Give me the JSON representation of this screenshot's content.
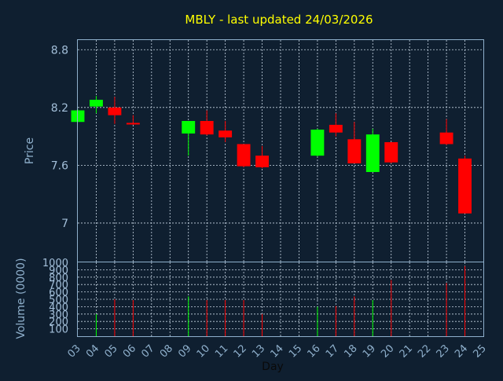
{
  "colors": {
    "background": "#0f1f30",
    "frame": "#8fb0cc",
    "grid": "#c8d6e4",
    "up": "#00ff00",
    "down": "#ff0000",
    "title": "#ffff00",
    "text": "#a3bfd9"
  },
  "chart_data": [
    {
      "type": "candlestick",
      "title": "MBLY - last updated 24/03/2026",
      "ylabel": "Price",
      "ylim": [
        6.6,
        8.9
      ],
      "yticks": [
        "8.8",
        "8.2",
        "7.6",
        "7"
      ],
      "grid": true,
      "series": [
        {
          "day": "03",
          "open": 8.05,
          "high": 8.18,
          "low": 8.05,
          "close": 8.17
        },
        {
          "day": "04",
          "open": 8.21,
          "high": 8.32,
          "low": 8.14,
          "close": 8.28
        },
        {
          "day": "05",
          "open": 8.2,
          "high": 8.31,
          "low": 8.03,
          "close": 8.12
        },
        {
          "day": "06",
          "open": 8.04,
          "high": 8.12,
          "low": 8.02,
          "close": 8.03
        },
        {
          "day": "09",
          "open": 7.93,
          "high": 8.05,
          "low": 7.7,
          "close": 8.06
        },
        {
          "day": "10",
          "open": 8.06,
          "high": 8.17,
          "low": 7.91,
          "close": 7.92
        },
        {
          "day": "11",
          "open": 7.96,
          "high": 8.06,
          "low": 7.84,
          "close": 7.89
        },
        {
          "day": "12",
          "open": 7.82,
          "high": 7.82,
          "low": 7.58,
          "close": 7.59
        },
        {
          "day": "13",
          "open": 7.7,
          "high": 7.8,
          "low": 7.57,
          "close": 7.58
        },
        {
          "day": "16",
          "open": 7.7,
          "high": 7.98,
          "low": 7.69,
          "close": 7.97
        },
        {
          "day": "17",
          "open": 8.02,
          "high": 8.14,
          "low": 7.9,
          "close": 7.94
        },
        {
          "day": "18",
          "open": 7.87,
          "high": 8.05,
          "low": 7.62,
          "close": 7.62
        },
        {
          "day": "19",
          "open": 7.53,
          "high": 7.98,
          "low": 7.53,
          "close": 7.92
        },
        {
          "day": "20",
          "open": 7.84,
          "high": 7.84,
          "low": 7.62,
          "close": 7.63
        },
        {
          "day": "23",
          "open": 7.94,
          "high": 8.08,
          "low": 7.81,
          "close": 7.82
        },
        {
          "day": "24",
          "open": 7.67,
          "high": 7.7,
          "low": 7.1,
          "close": 7.1
        }
      ]
    },
    {
      "type": "bar",
      "ylabel": "Volume (0000)",
      "xlabel": "Day",
      "ylim": [
        0,
        1000
      ],
      "yticks": [
        "1000",
        "900",
        "800",
        "700",
        "600",
        "500",
        "400",
        "300",
        "200",
        "100"
      ],
      "categories": [
        "03",
        "04",
        "05",
        "06",
        "07",
        "08",
        "09",
        "10",
        "11",
        "12",
        "13",
        "14",
        "15",
        "16",
        "17",
        "18",
        "19",
        "20",
        "21",
        "22",
        "23",
        "24",
        "25"
      ],
      "values": [
        {
          "day": "04",
          "value": 300,
          "dir": "up"
        },
        {
          "day": "05",
          "value": 500,
          "dir": "down"
        },
        {
          "day": "06",
          "value": 490,
          "dir": "down"
        },
        {
          "day": "09",
          "value": 540,
          "dir": "up"
        },
        {
          "day": "10",
          "value": 490,
          "dir": "down"
        },
        {
          "day": "11",
          "value": 490,
          "dir": "down"
        },
        {
          "day": "12",
          "value": 490,
          "dir": "down"
        },
        {
          "day": "13",
          "value": 300,
          "dir": "down"
        },
        {
          "day": "16",
          "value": 400,
          "dir": "up"
        },
        {
          "day": "17",
          "value": 410,
          "dir": "down"
        },
        {
          "day": "18",
          "value": 540,
          "dir": "down"
        },
        {
          "day": "19",
          "value": 490,
          "dir": "up"
        },
        {
          "day": "20",
          "value": 760,
          "dir": "down"
        },
        {
          "day": "23",
          "value": 720,
          "dir": "down"
        },
        {
          "day": "24",
          "value": 950,
          "dir": "down"
        }
      ]
    }
  ]
}
